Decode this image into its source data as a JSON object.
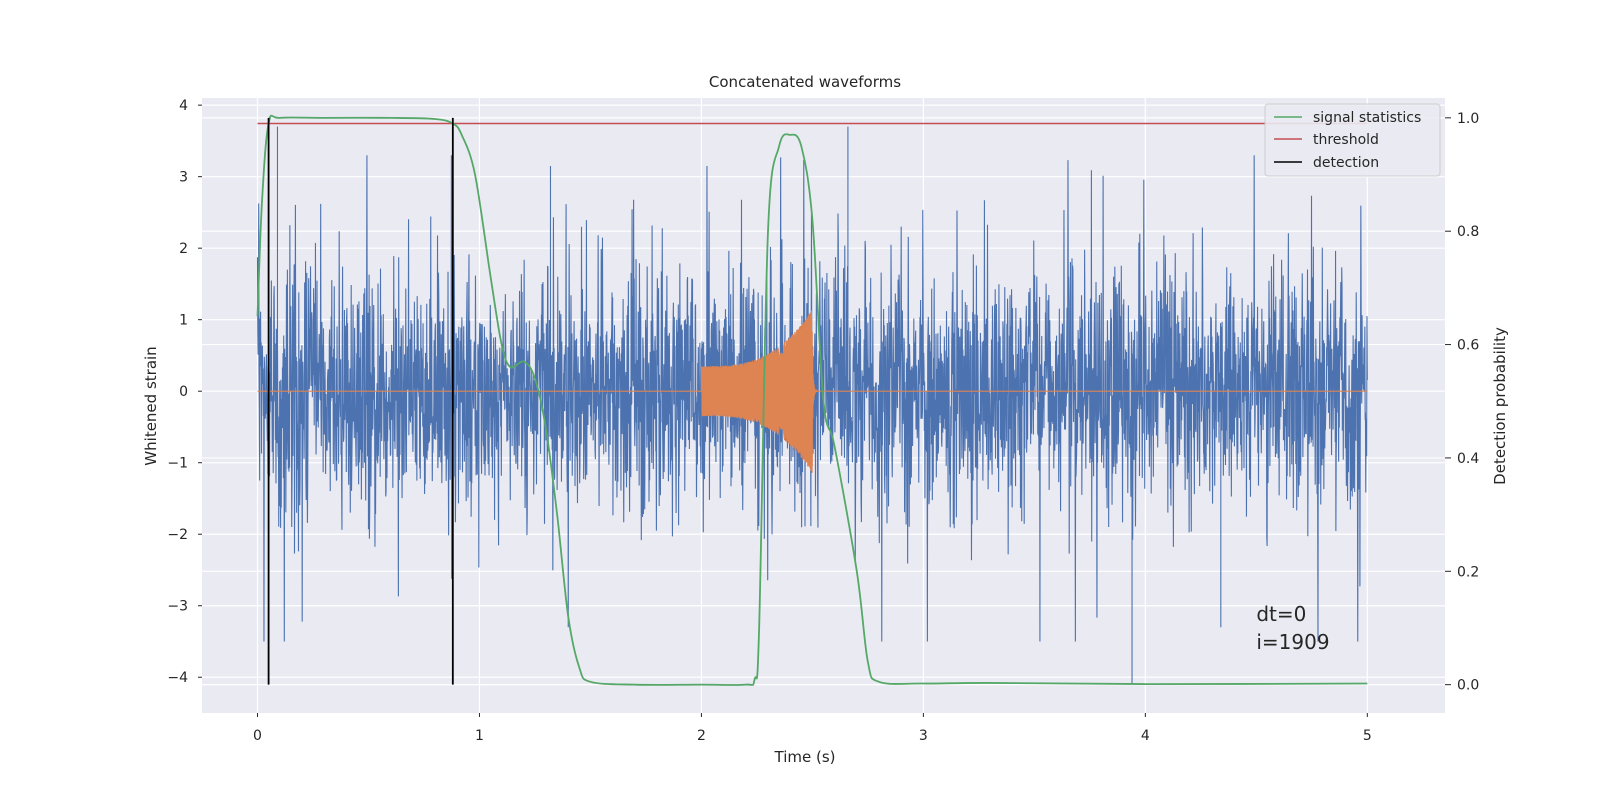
{
  "chart_data": {
    "type": "line",
    "title": "Concatenated waveforms",
    "xlabel": "Time (s)",
    "ylabel": "Whitened strain",
    "y2label": "Detection probability",
    "xlim": [
      -0.25,
      5.35
    ],
    "ylim": [
      -4.5,
      4.1
    ],
    "y2lim": [
      -0.05,
      1.035
    ],
    "xticks": [
      0,
      1,
      2,
      3,
      4,
      5
    ],
    "yticks": [
      -4,
      -3,
      -2,
      -1,
      0,
      1,
      2,
      3,
      4
    ],
    "y2ticks": [
      0.0,
      0.2,
      0.4,
      0.6,
      0.8,
      1.0
    ],
    "y2tick_labels": [
      "0.0",
      "0.2",
      "0.4",
      "0.6",
      "0.8",
      "1.0"
    ],
    "grid": true,
    "background": "#eaeaf2",
    "legend_position": "top-right",
    "legend": [
      {
        "name": "signal statistics",
        "color": "#55a868"
      },
      {
        "name": "threshold",
        "color": "#c44e52"
      },
      {
        "name": "detection",
        "color": "#000000"
      }
    ],
    "strain_noise": {
      "color": "#4c72b0",
      "x_range": [
        0,
        5
      ],
      "core_amplitude": 1.0,
      "peak_max": 3.7,
      "peak_min": -4.1,
      "notable_peaks": [
        {
          "x": 2.66,
          "y": 3.7
        },
        {
          "x": 3.94,
          "y": -4.1
        },
        {
          "x": 0.09,
          "y": 3.7
        },
        {
          "x": 1.32,
          "y": 3.15
        },
        {
          "x": 4.34,
          "y": -3.3
        }
      ]
    },
    "chirp": {
      "color": "#dd8452",
      "x_start": 2.0,
      "x_end": 2.5,
      "amp_start": 0.35,
      "amp_peak": 1.15,
      "baseline": 0
    },
    "signal_statistics": {
      "color": "#55a868",
      "x": [
        0,
        0.02,
        0.05,
        0.1,
        0.3,
        0.6,
        0.8,
        0.88,
        0.92,
        0.98,
        1.05,
        1.1,
        1.14,
        1.2,
        1.25,
        1.3,
        1.35,
        1.4,
        1.45,
        1.5,
        1.7,
        2.0,
        2.2,
        2.24,
        2.26,
        2.3,
        2.35,
        2.4,
        2.45,
        2.5,
        2.55,
        2.6,
        2.7,
        2.75,
        2.8,
        3.0,
        3.3,
        4.0,
        5.0
      ],
      "y": [
        0.65,
        0.85,
        0.99,
        1.0,
        1.0,
        1.0,
        0.998,
        0.99,
        0.97,
        0.9,
        0.72,
        0.6,
        0.56,
        0.57,
        0.54,
        0.45,
        0.3,
        0.12,
        0.03,
        0.005,
        0.0,
        0.0,
        0.0,
        0.01,
        0.1,
        0.8,
        0.95,
        0.97,
        0.95,
        0.82,
        0.5,
        0.42,
        0.2,
        0.04,
        0.005,
        0.002,
        0.003,
        0.001,
        0.002
      ]
    },
    "threshold": {
      "value": 0.99,
      "x_range": [
        0,
        5
      ],
      "color": "#c44e52"
    },
    "detections": [
      {
        "x": 0.05,
        "y_range": [
          0,
          1.0
        ]
      },
      {
        "x": 0.88,
        "y_range": [
          0,
          1.0
        ]
      }
    ],
    "annotation": {
      "line1": "dt=0",
      "line2": "i=1909",
      "x": 4.5,
      "y": -3.2
    }
  }
}
